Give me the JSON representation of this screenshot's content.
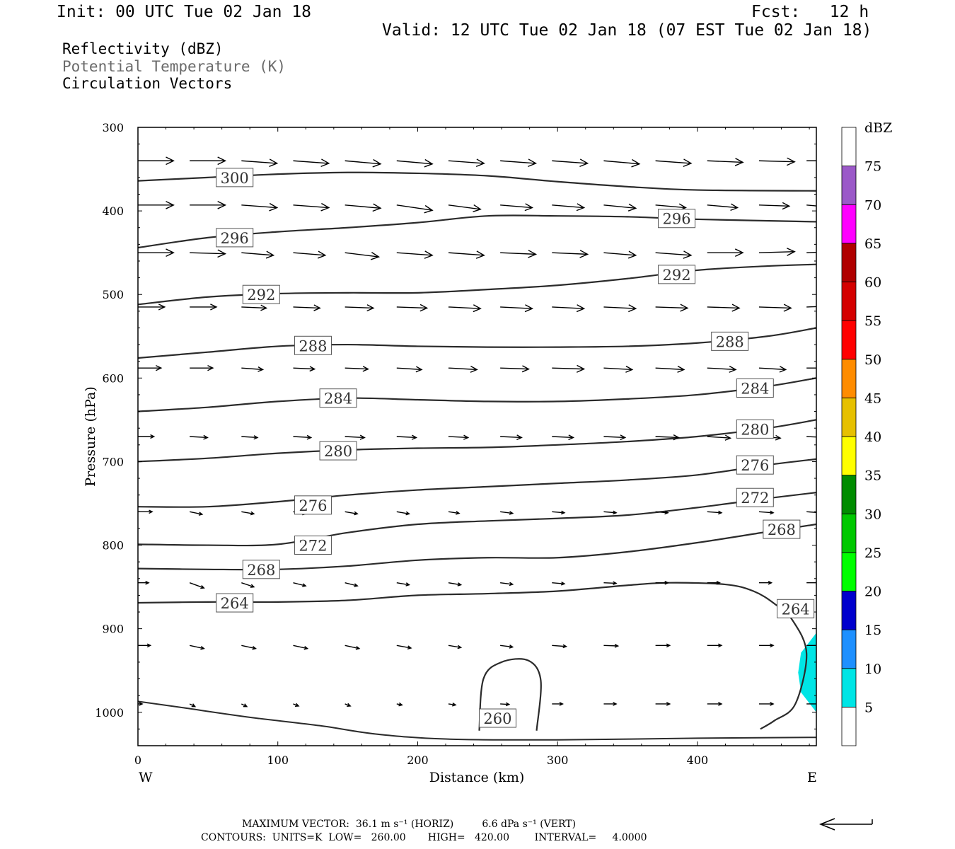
{
  "header": {
    "init": "Init: 00 UTC Tue 02 Jan 18",
    "fcst": "Fcst:   12 h",
    "valid": "Valid: 12 UTC Tue 02 Jan 18 (07 EST Tue 02 Jan 18)"
  },
  "fields": {
    "reflectivity": "Reflectivity (dBZ)",
    "theta": "Potential Temperature (K)",
    "vectors": "Circulation Vectors"
  },
  "chart_data": {
    "type": "cross-section contour",
    "xlabel": "Distance (km)",
    "ylabel": "Pressure (hPa)",
    "xlim": [
      0,
      485
    ],
    "ylim": [
      1040,
      300
    ],
    "y_log_pressure": false,
    "x_ticks": [
      0,
      100,
      200,
      300,
      400
    ],
    "y_ticks": [
      300,
      400,
      500,
      600,
      700,
      800,
      900,
      1000
    ],
    "x_end_labels": {
      "left": "W",
      "right": "E"
    },
    "isentropes": [
      {
        "value": 300,
        "label_at": [
          [
            56,
            360
          ]
        ],
        "points": [
          [
            0,
            364
          ],
          [
            50,
            360
          ],
          [
            100,
            356
          ],
          [
            150,
            354
          ],
          [
            200,
            355
          ],
          [
            250,
            358
          ],
          [
            300,
            365
          ],
          [
            350,
            371
          ],
          [
            400,
            375
          ],
          [
            485,
            376
          ]
        ]
      },
      {
        "value": 296,
        "label_at": [
          [
            56,
            432
          ],
          [
            372,
            409
          ]
        ],
        "points": [
          [
            0,
            444
          ],
          [
            50,
            432
          ],
          [
            100,
            425
          ],
          [
            150,
            420
          ],
          [
            200,
            414
          ],
          [
            250,
            406
          ],
          [
            300,
            406
          ],
          [
            350,
            407
          ],
          [
            400,
            410
          ],
          [
            485,
            413
          ]
        ]
      },
      {
        "value": 292,
        "label_at": [
          [
            75,
            500
          ],
          [
            372,
            476
          ]
        ],
        "points": [
          [
            0,
            512
          ],
          [
            50,
            503
          ],
          [
            100,
            499
          ],
          [
            150,
            498
          ],
          [
            200,
            498
          ],
          [
            250,
            494
          ],
          [
            300,
            489
          ],
          [
            350,
            481
          ],
          [
            400,
            471
          ],
          [
            450,
            466
          ],
          [
            485,
            464
          ]
        ]
      },
      {
        "value": 288,
        "label_at": [
          [
            112,
            561
          ],
          [
            410,
            556
          ]
        ],
        "points": [
          [
            0,
            576
          ],
          [
            50,
            569
          ],
          [
            100,
            562
          ],
          [
            150,
            560
          ],
          [
            200,
            562
          ],
          [
            250,
            563
          ],
          [
            300,
            563
          ],
          [
            350,
            562
          ],
          [
            400,
            558
          ],
          [
            450,
            550
          ],
          [
            485,
            540
          ]
        ]
      },
      {
        "value": 284,
        "label_at": [
          [
            130,
            624
          ],
          [
            428,
            612
          ]
        ],
        "points": [
          [
            0,
            640
          ],
          [
            50,
            635
          ],
          [
            100,
            628
          ],
          [
            150,
            624
          ],
          [
            200,
            626
          ],
          [
            250,
            628
          ],
          [
            300,
            628
          ],
          [
            350,
            625
          ],
          [
            400,
            620
          ],
          [
            450,
            610
          ],
          [
            485,
            600
          ]
        ]
      },
      {
        "value": 280,
        "label_at": [
          [
            130,
            687
          ],
          [
            428,
            661
          ]
        ],
        "points": [
          [
            0,
            700
          ],
          [
            50,
            696
          ],
          [
            100,
            690
          ],
          [
            150,
            686
          ],
          [
            200,
            684
          ],
          [
            250,
            683
          ],
          [
            300,
            680
          ],
          [
            350,
            676
          ],
          [
            400,
            670
          ],
          [
            450,
            660
          ],
          [
            485,
            650
          ]
        ]
      },
      {
        "value": 276,
        "label_at": [
          [
            112,
            752
          ],
          [
            428,
            704
          ]
        ],
        "points": [
          [
            0,
            754
          ],
          [
            50,
            754
          ],
          [
            100,
            748
          ],
          [
            150,
            740
          ],
          [
            200,
            734
          ],
          [
            250,
            730
          ],
          [
            300,
            726
          ],
          [
            350,
            722
          ],
          [
            400,
            716
          ],
          [
            450,
            704
          ],
          [
            485,
            697
          ]
        ]
      },
      {
        "value": 272,
        "label_at": [
          [
            112,
            800
          ],
          [
            428,
            743
          ]
        ],
        "points": [
          [
            0,
            799
          ],
          [
            50,
            800
          ],
          [
            100,
            799
          ],
          [
            150,
            785
          ],
          [
            200,
            775
          ],
          [
            250,
            771
          ],
          [
            300,
            768
          ],
          [
            350,
            764
          ],
          [
            400,
            755
          ],
          [
            450,
            744
          ],
          [
            485,
            737
          ]
        ]
      },
      {
        "value": 268,
        "label_at": [
          [
            75,
            829
          ],
          [
            447,
            781
          ]
        ],
        "points": [
          [
            0,
            828
          ],
          [
            50,
            829
          ],
          [
            100,
            829
          ],
          [
            150,
            825
          ],
          [
            200,
            818
          ],
          [
            250,
            815
          ],
          [
            300,
            815
          ],
          [
            350,
            808
          ],
          [
            400,
            797
          ],
          [
            450,
            784
          ],
          [
            485,
            775
          ]
        ]
      },
      {
        "value": 264,
        "label_at": [
          [
            56,
            869
          ],
          [
            457,
            876
          ]
        ],
        "points": [
          [
            0,
            869
          ],
          [
            50,
            868
          ],
          [
            100,
            868
          ],
          [
            150,
            866
          ],
          [
            200,
            860
          ],
          [
            250,
            858
          ],
          [
            300,
            855
          ],
          [
            350,
            848
          ],
          [
            380,
            845
          ],
          [
            420,
            847
          ],
          [
            440,
            855
          ],
          [
            455,
            870
          ],
          [
            468,
            890
          ],
          [
            478,
            930
          ],
          [
            470,
            990
          ],
          [
            455,
            1010
          ],
          [
            445,
            1020
          ]
        ]
      },
      {
        "value": 260,
        "label_at": [
          [
            244,
            1007
          ]
        ],
        "points": [
          [
            244,
            1022
          ],
          [
            247,
            960
          ],
          [
            260,
            940
          ],
          [
            279,
            938
          ],
          [
            288,
            962
          ],
          [
            285,
            1022
          ]
        ]
      }
    ],
    "surface_line": [
      [
        0,
        987
      ],
      [
        30,
        994
      ],
      [
        80,
        1006
      ],
      [
        130,
        1016
      ],
      [
        170,
        1026
      ],
      [
        220,
        1032
      ],
      [
        300,
        1033
      ],
      [
        400,
        1031
      ],
      [
        485,
        1030
      ]
    ],
    "reflectivity_areas": [
      {
        "x_range": [
          472,
          485
        ],
        "p_range": [
          905,
          1000
        ],
        "max_dbz": 10
      }
    ],
    "vectors": [
      {
        "p": 340,
        "xs": [
          0,
          37,
          74,
          111,
          148,
          185,
          222,
          259,
          296,
          333,
          370,
          407,
          444,
          478
        ],
        "u": [
          1.0,
          1.0,
          1.0,
          1.0,
          1.0,
          1.0,
          1.0,
          1.0,
          1.0,
          1.0,
          1.0,
          1.0,
          1.0,
          1.0
        ],
        "w": [
          0,
          0,
          0.05,
          0.05,
          0.06,
          0.06,
          0.05,
          0.05,
          0.05,
          0.06,
          0.05,
          0.03,
          0.02,
          0.0
        ]
      },
      {
        "p": 393,
        "xs": [
          0,
          37,
          74,
          111,
          148,
          185,
          222,
          259,
          296,
          333,
          370,
          407,
          444,
          478
        ],
        "u": [
          1.0,
          1.0,
          1.0,
          1.0,
          1.0,
          1.0,
          0.9,
          0.9,
          0.9,
          0.9,
          0.85,
          0.85,
          0.85,
          0.85
        ],
        "w": [
          0,
          0,
          0.05,
          0.05,
          0.06,
          0.1,
          0.08,
          0.05,
          0.05,
          0.06,
          0.05,
          0.05,
          0.02,
          0.05
        ]
      },
      {
        "p": 450,
        "xs": [
          0,
          37,
          74,
          111,
          148,
          185,
          222,
          259,
          296,
          333,
          370,
          407,
          444,
          478
        ],
        "u": [
          1.0,
          1.0,
          0.9,
          0.9,
          0.95,
          1.0,
          1.0,
          1.0,
          1.0,
          0.9,
          1.0,
          1.0,
          1.0,
          1.0
        ],
        "w": [
          0,
          0.02,
          0.05,
          0.05,
          0.08,
          0.05,
          0.05,
          0.03,
          0.03,
          0.05,
          0.05,
          0.0,
          -0.02,
          -0.03
        ]
      },
      {
        "p": 515,
        "xs": [
          0,
          37,
          74,
          111,
          148,
          185,
          222,
          259,
          296,
          333,
          370,
          407,
          444,
          478
        ],
        "u": [
          0.75,
          0.75,
          0.7,
          0.75,
          0.8,
          0.85,
          0.9,
          0.9,
          0.9,
          0.9,
          0.9,
          0.9,
          0.9,
          0.9
        ],
        "w": [
          0,
          0,
          0.02,
          0.02,
          0.02,
          0.02,
          0.03,
          0.03,
          0.03,
          0.03,
          0.02,
          0.02,
          0.02,
          -0.02
        ]
      },
      {
        "p": 588,
        "xs": [
          0,
          37,
          74,
          111,
          148,
          185,
          222,
          259,
          296,
          333,
          370,
          407,
          444,
          478
        ],
        "u": [
          0.65,
          0.65,
          0.6,
          0.6,
          0.65,
          0.7,
          0.8,
          0.8,
          0.9,
          0.8,
          0.8,
          0.8,
          0.75,
          0.7
        ],
        "w": [
          0,
          0,
          0.03,
          0.02,
          0.02,
          0.03,
          0.03,
          0.02,
          0.02,
          0.03,
          0.03,
          0.03,
          0.03,
          0.0
        ]
      },
      {
        "p": 670,
        "xs": [
          0,
          37,
          74,
          111,
          148,
          185,
          222,
          259,
          296,
          333,
          370,
          407,
          444,
          478
        ],
        "u": [
          0.45,
          0.5,
          0.45,
          0.5,
          0.55,
          0.55,
          0.55,
          0.6,
          0.6,
          0.6,
          0.65,
          0.65,
          0.6,
          0.6
        ],
        "w": [
          0,
          0.02,
          0.02,
          0.02,
          0.02,
          0.02,
          0.02,
          0.02,
          0.02,
          0.02,
          0.02,
          0.03,
          0.03,
          0.02
        ]
      },
      {
        "p": 760,
        "xs": [
          0,
          37,
          74,
          111,
          148,
          185,
          222,
          259,
          296,
          333,
          370,
          407,
          444,
          478
        ],
        "u": [
          0.4,
          0.35,
          0.35,
          0.35,
          0.35,
          0.35,
          0.3,
          0.35,
          0.35,
          0.35,
          0.35,
          0.4,
          0.4,
          0.4
        ],
        "w": [
          0,
          0.05,
          0.04,
          0.04,
          0.04,
          0.04,
          0.03,
          0.03,
          0.02,
          0.02,
          0.02,
          0.02,
          0.02,
          0.02
        ]
      },
      {
        "p": 845,
        "xs": [
          0,
          37,
          74,
          111,
          148,
          185,
          222,
          259,
          296,
          333,
          370,
          407,
          444,
          478
        ],
        "u": [
          0.3,
          0.4,
          0.35,
          0.35,
          0.35,
          0.35,
          0.35,
          0.35,
          0.35,
          0.35,
          0.35,
          0.35,
          0.35,
          0.35
        ],
        "w": [
          0,
          0.1,
          0.08,
          0.06,
          0.06,
          0.04,
          0.04,
          0.03,
          0.02,
          0.01,
          0.0,
          0.0,
          0.0,
          0.0
        ]
      },
      {
        "p": 920,
        "xs": [
          0,
          37,
          74,
          111,
          148,
          185,
          222,
          259,
          296,
          333,
          370,
          407,
          444,
          478
        ],
        "u": [
          0.35,
          0.4,
          0.4,
          0.4,
          0.4,
          0.4,
          0.35,
          0.35,
          0.4,
          0.4,
          0.4,
          0.4,
          0.4,
          0.4
        ],
        "w": [
          0,
          0.06,
          0.06,
          0.06,
          0.06,
          0.05,
          0.04,
          0.03,
          0.02,
          0.01,
          0.0,
          0.0,
          0.0,
          0.0
        ]
      },
      {
        "p": 990,
        "xs": [
          0,
          37,
          74,
          111,
          148,
          185,
          222,
          259,
          296,
          333,
          370,
          407,
          444,
          478
        ],
        "u": [
          0.12,
          0.15,
          0.15,
          0.15,
          0.15,
          0.15,
          0.2,
          0.25,
          0.3,
          0.35,
          0.4,
          0.4,
          0.4,
          0.4
        ],
        "w": [
          0,
          0.05,
          0.05,
          0.04,
          0.04,
          0.02,
          0.02,
          0.01,
          0.0,
          0.0,
          0.0,
          0.0,
          0.0,
          0.0
        ]
      }
    ],
    "colorbar": {
      "unit": "dBZ",
      "levels": [
        "5",
        "10",
        "15",
        "20",
        "25",
        "30",
        "35",
        "40",
        "45",
        "50",
        "55",
        "60",
        "65",
        "70",
        "75"
      ],
      "colors": [
        "#00e5e5",
        "#1e90ff",
        "#0000cd",
        "#00ff00",
        "#00c800",
        "#008c00",
        "#ffff00",
        "#e6c000",
        "#ff8c00",
        "#ff0000",
        "#d40000",
        "#b00000",
        "#ff00ff",
        "#9b59c8",
        "#ffffff"
      ]
    }
  },
  "footer": {
    "max_vector": "MAXIMUM VECTOR:  36.1 m s⁻¹ (HORIZ)         6.6 dPa s⁻¹ (VERT)",
    "contours": "CONTOURS:  UNITS=K  LOW=   260.00       HIGH=   420.00        INTERVAL=     4.0000"
  }
}
